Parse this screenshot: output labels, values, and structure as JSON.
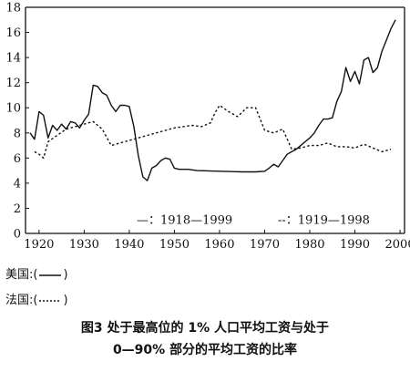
{
  "chart_data": {
    "type": "line",
    "xlim": [
      1917,
      2001
    ],
    "ylim": [
      0,
      18
    ],
    "x_ticks": [
      1920,
      1930,
      1940,
      1950,
      1960,
      1970,
      1980,
      1990,
      2000
    ],
    "y_ticks": [
      0,
      2,
      4,
      6,
      8,
      10,
      12,
      14,
      16,
      18
    ],
    "grid": false,
    "legend_position": "bottom",
    "series": [
      {
        "name": "—：1918—1999",
        "style": "solid",
        "color": "#111111",
        "x": [
          1918,
          1919,
          1920,
          1921,
          1922,
          1923,
          1924,
          1925,
          1926,
          1927,
          1928,
          1929,
          1930,
          1931,
          1932,
          1933,
          1934,
          1935,
          1936,
          1937,
          1938,
          1939,
          1940,
          1941,
          1942,
          1943,
          1944,
          1945,
          1946,
          1947,
          1948,
          1949,
          1950,
          1951,
          1952,
          1953,
          1955,
          1960,
          1965,
          1968,
          1970,
          1971,
          1972,
          1973,
          1974,
          1975,
          1976,
          1977,
          1978,
          1979,
          1980,
          1981,
          1982,
          1983,
          1984,
          1985,
          1986,
          1987,
          1988,
          1989,
          1990,
          1991,
          1992,
          1993,
          1994,
          1995,
          1996,
          1997,
          1998,
          1999
        ],
        "y": [
          8.0,
          7.5,
          9.7,
          9.4,
          7.6,
          8.6,
          8.2,
          8.7,
          8.3,
          8.9,
          8.8,
          8.4,
          9.0,
          9.5,
          11.8,
          11.7,
          11.2,
          11.0,
          10.2,
          9.7,
          10.2,
          10.2,
          10.1,
          8.5,
          6.2,
          4.5,
          4.2,
          5.2,
          5.4,
          5.8,
          6.0,
          5.9,
          5.2,
          5.1,
          5.1,
          5.1,
          5.0,
          4.95,
          4.9,
          4.9,
          4.95,
          5.2,
          5.5,
          5.3,
          5.8,
          6.3,
          6.5,
          6.7,
          7.0,
          7.3,
          7.6,
          8.0,
          8.6,
          9.1,
          9.1,
          9.2,
          10.5,
          11.3,
          13.2,
          12.1,
          12.9,
          11.9,
          13.8,
          14.0,
          12.8,
          13.2,
          14.5,
          15.4,
          16.3,
          17.0
        ]
      },
      {
        "name": "--：1919—1998",
        "style": "dashed",
        "color": "#111111",
        "x": [
          1919,
          1920,
          1921,
          1922,
          1924,
          1926,
          1928,
          1930,
          1932,
          1934,
          1936,
          1938,
          1940,
          1944,
          1948,
          1950,
          1952,
          1954,
          1956,
          1958,
          1959,
          1960,
          1962,
          1964,
          1966,
          1968,
          1970,
          1972,
          1974,
          1976,
          1978,
          1980,
          1982,
          1984,
          1986,
          1988,
          1990,
          1992,
          1994,
          1996,
          1998
        ],
        "y": [
          6.5,
          6.3,
          6.0,
          7.3,
          7.8,
          8.3,
          8.5,
          8.7,
          8.9,
          8.3,
          7.0,
          7.2,
          7.4,
          7.8,
          8.2,
          8.4,
          8.5,
          8.6,
          8.5,
          8.8,
          9.6,
          10.2,
          9.7,
          9.3,
          10.0,
          10.0,
          8.2,
          8.0,
          8.3,
          6.7,
          6.8,
          7.0,
          7.0,
          7.2,
          6.9,
          6.9,
          6.8,
          7.1,
          6.8,
          6.5,
          6.7
        ]
      }
    ]
  },
  "notes": {
    "usa_label": "美国:(",
    "usa_close": ")",
    "france_label": "法国:(",
    "france_close": ")"
  },
  "caption": {
    "line1": "图3   处于最高位的 1% 人口平均工资与处于",
    "line2": "0—90% 部分的平均工资的比率"
  }
}
